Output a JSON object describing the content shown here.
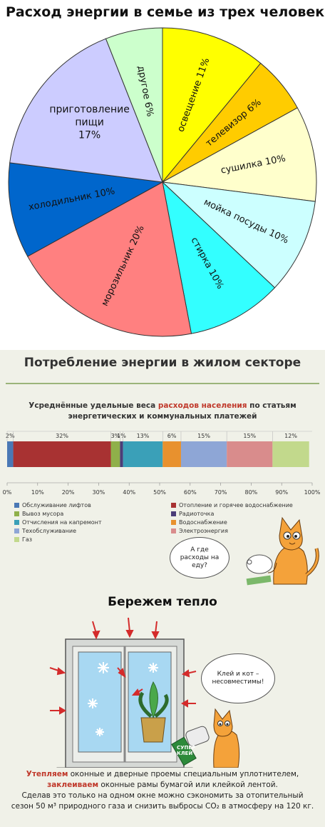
{
  "panel1": {
    "title": "Расход энергии в семье из трех человек"
  },
  "panel2": {
    "title": "Потребление энергии в жилом секторе",
    "subtitle_line1_pre": "Усреднённые удельные веса ",
    "subtitle_line1_hl": "расходов населения",
    "subtitle_line1_post": " по статьям",
    "subtitle_line2": "энергетических и коммунальных платежей",
    "bubble_text": "А где расходы на еду?"
  },
  "panel3": {
    "title": "Бережем тепло",
    "bubble_text": "Клей и кот – несовместимы!",
    "glue_label_1": "СУПЕР",
    "glue_label_2": "КЛЕЙ",
    "caption": {
      "l1_red": "Утепляем",
      "l1_rest": " оконные и дверные проемы специальным уплотнителем,",
      "l2_red": "заклеиваем",
      "l2_rest": " оконные рамы бумагой или клейкой лентой.",
      "l3": "Сделав это только на одном окне можно сэкономить за отопительный",
      "l4": "сезон 50 м³ природного газа и снизить выбросы CO₂ в атмосферу на 120 кг."
    }
  },
  "chart_data": [
    {
      "type": "pie",
      "title": "Расход энергии в семье из трех человек",
      "slices": [
        {
          "label": "освещение 11%",
          "value": 11,
          "color": "#ffff00"
        },
        {
          "label": "телевизор 6%",
          "value": 6,
          "color": "#ffcc00"
        },
        {
          "label": "сушилка 10%",
          "value": 10,
          "color": "#ffffcc"
        },
        {
          "label": "мойка посуды 10%",
          "value": 10,
          "color": "#ccffff"
        },
        {
          "label": "стирка 10%",
          "value": 10,
          "color": "#33ffff"
        },
        {
          "label": "морозильник 20%",
          "value": 20,
          "color": "#ff8080"
        },
        {
          "label": "холодильник 10%",
          "value": 10,
          "color": "#0066cc"
        },
        {
          "label": "приготовление пищи 17%",
          "value": 17,
          "color": "#ccccff"
        },
        {
          "label": "другое 6%",
          "value": 6,
          "color": "#ccffcc"
        }
      ]
    },
    {
      "type": "bar",
      "orientation": "horizontal-stacked",
      "title": "Усреднённые удельные веса расходов населения по статьям энергетических и коммунальных платежей",
      "segments": [
        {
          "label": "2%",
          "value": 2,
          "color": "#4a78b5"
        },
        {
          "label": "32%",
          "value": 32,
          "color": "#a83232"
        },
        {
          "label": "3%",
          "value": 3,
          "color": "#8fb04a"
        },
        {
          "label": "1%",
          "value": 1,
          "color": "#4b3d78"
        },
        {
          "label": "13%",
          "value": 13,
          "color": "#3aa0b8"
        },
        {
          "label": "6%",
          "value": 6,
          "color": "#e8912e"
        },
        {
          "label": "15%",
          "value": 15,
          "color": "#8ea6d6"
        },
        {
          "label": "15%",
          "value": 15,
          "color": "#d98c8c"
        },
        {
          "label": "12%",
          "value": 12,
          "color": "#c2d98c"
        }
      ],
      "x_ticks": [
        "0%",
        "10%",
        "20%",
        "30%",
        "40%",
        "50%",
        "60%",
        "70%",
        "80%",
        "90%",
        "100%"
      ],
      "xlim": [
        0,
        100
      ],
      "legend": [
        {
          "label": "Обслуживание лифтов",
          "color": "#4a78b5"
        },
        {
          "label": "Вывоз мусора",
          "color": "#8fb04a"
        },
        {
          "label": "Отчисления на капремонт",
          "color": "#3aa0b8"
        },
        {
          "label": "Техобслуживание",
          "color": "#8ea6d6"
        },
        {
          "label": "Газ",
          "color": "#c2d98c"
        },
        {
          "label": "Отопление и горячее водоснабжение",
          "color": "#a83232"
        },
        {
          "label": "Радиоточка",
          "color": "#4b3d78"
        },
        {
          "label": "Водоснабжение",
          "color": "#e8912e"
        },
        {
          "label": "Электроэнергия",
          "color": "#d98c8c"
        }
      ]
    }
  ]
}
